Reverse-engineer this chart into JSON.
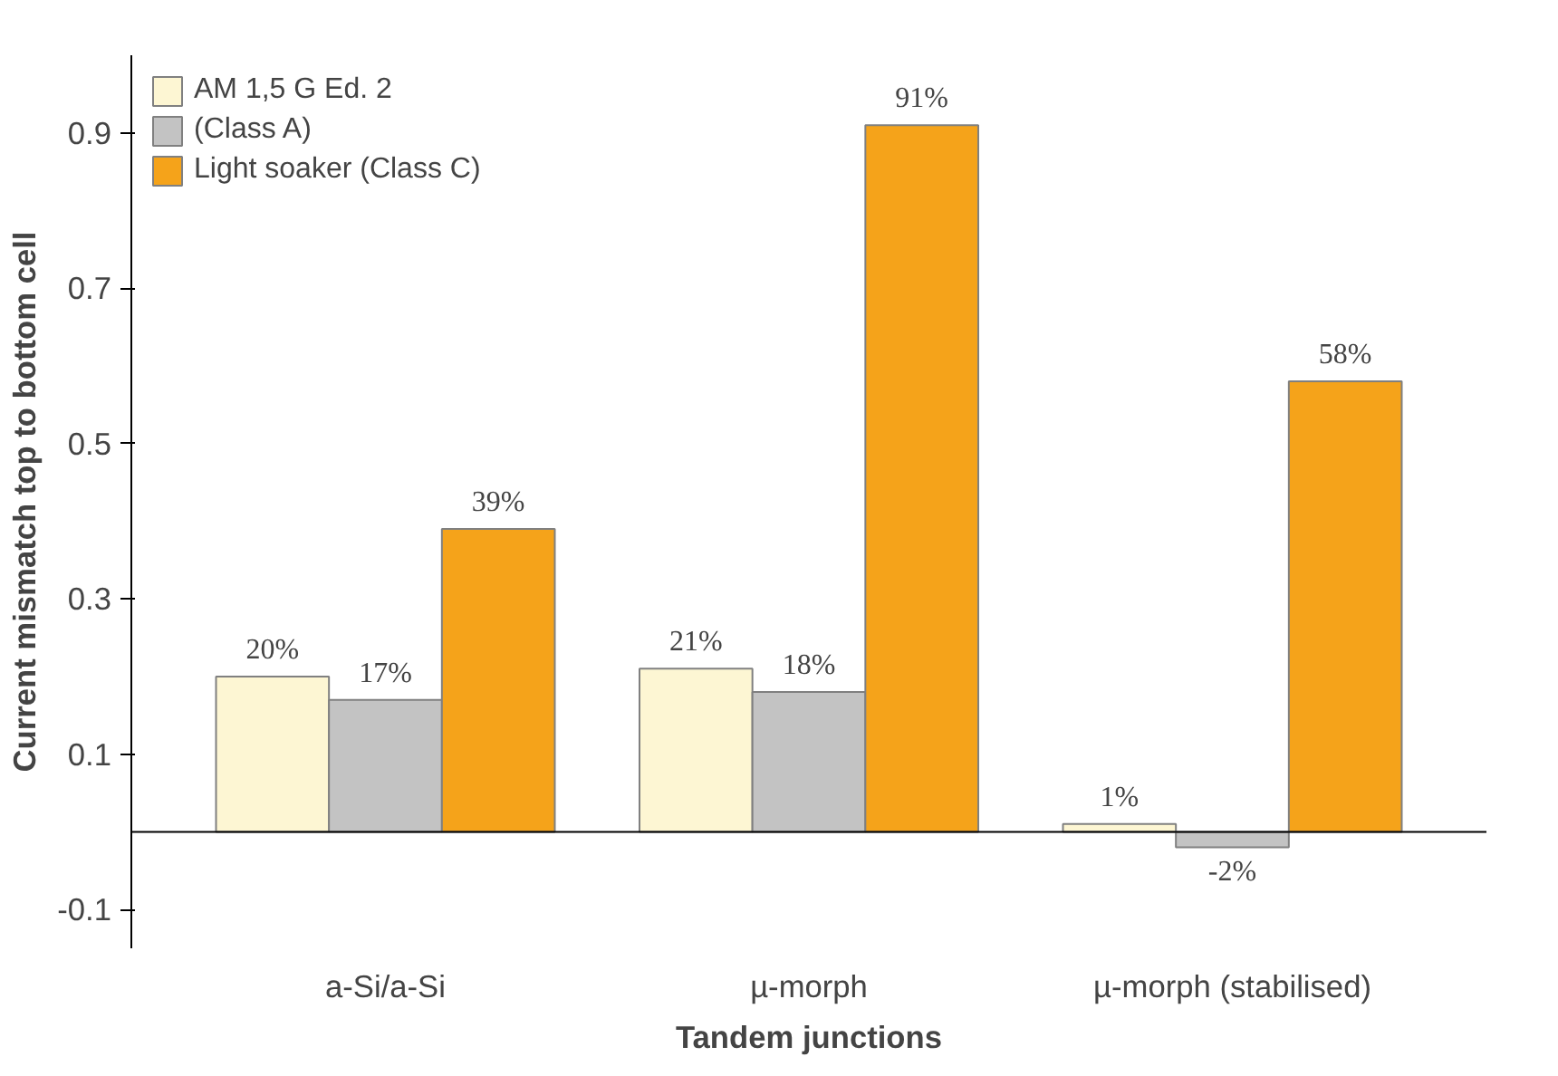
{
  "chart_data": {
    "type": "bar",
    "xlabel": "Tandem junctions",
    "ylabel": "Current mismatch top to bottom cell",
    "categories": [
      "a-Si/a-Si",
      "µ-morph",
      "µ-morph (stabilised)"
    ],
    "series": [
      {
        "name": "AM 1,5 G Ed. 2",
        "color": "#fdf6d3",
        "values": [
          0.2,
          0.21,
          0.01
        ],
        "value_labels": [
          "20%",
          "21%",
          "1%"
        ]
      },
      {
        "name": "(Class A)",
        "color": "#c3c3c3",
        "values": [
          0.17,
          0.18,
          -0.02
        ],
        "value_labels": [
          "17%",
          "18%",
          "-2%"
        ]
      },
      {
        "name": "Light soaker (Class C)",
        "color": "#f5a31a",
        "values": [
          0.39,
          0.91,
          0.58
        ],
        "value_labels": [
          "39%",
          "91%",
          "58%"
        ]
      }
    ],
    "ylim": [
      -0.15,
      1.0
    ],
    "yticks": [
      {
        "value": -0.1,
        "label": "-0.1"
      },
      {
        "value": 0.1,
        "label": "0.1"
      },
      {
        "value": 0.3,
        "label": "0.3"
      },
      {
        "value": 0.5,
        "label": "0.5"
      },
      {
        "value": 0.7,
        "label": "0.7"
      },
      {
        "value": 0.9,
        "label": "0.9"
      }
    ],
    "grid": false,
    "legend": "top left"
  }
}
